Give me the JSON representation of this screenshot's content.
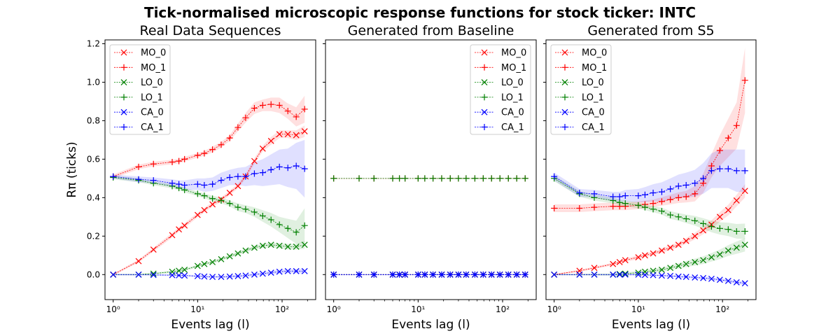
{
  "suptitle": "Tick-normalised microscopic response functions for stock ticker: INTC",
  "chart_data": [
    {
      "type": "line",
      "title": "Real Data Sequences",
      "xlabel": "Events lag (l)",
      "ylabel": "Rπ (ticks)",
      "xscale": "log",
      "xlim": [
        0.8,
        250
      ],
      "ylim": [
        -0.13,
        1.22
      ],
      "yticks": [
        0.0,
        0.2,
        0.4,
        0.6,
        0.8,
        1.0,
        1.2
      ],
      "ytick_labels": [
        "0.0",
        "0.2",
        "0.4",
        "0.6",
        "0.8",
        "1.0",
        "1.2"
      ],
      "xticks": [
        1,
        10,
        100
      ],
      "xtick_labels": [
        "10⁰",
        "10¹",
        "10²"
      ],
      "legend_position": "upper-left",
      "lags": [
        1,
        2,
        3,
        5,
        6,
        7,
        10,
        12,
        15,
        19,
        24,
        30,
        37,
        47,
        59,
        74,
        93,
        117,
        147,
        185
      ],
      "series": [
        {
          "name": "MO_0",
          "color": "#ff0000",
          "marker": "x",
          "values": [
            0.0,
            0.07,
            0.13,
            0.205,
            0.235,
            0.255,
            0.31,
            0.335,
            0.365,
            0.39,
            0.425,
            0.46,
            0.51,
            0.59,
            0.655,
            0.695,
            0.73,
            0.73,
            0.725,
            0.745
          ],
          "band": [
            0.005,
            0.008,
            0.01,
            0.012,
            0.012,
            0.012,
            0.012,
            0.012,
            0.012,
            0.012,
            0.012,
            0.012,
            0.012,
            0.015,
            0.015,
            0.02,
            0.02,
            0.02,
            0.025,
            0.03
          ]
        },
        {
          "name": "MO_1",
          "color": "#ff0000",
          "marker": "+",
          "values": [
            0.51,
            0.56,
            0.575,
            0.585,
            0.59,
            0.6,
            0.62,
            0.63,
            0.65,
            0.675,
            0.71,
            0.765,
            0.815,
            0.865,
            0.88,
            0.885,
            0.88,
            0.85,
            0.82,
            0.86
          ],
          "band": [
            0.01,
            0.012,
            0.012,
            0.012,
            0.012,
            0.012,
            0.012,
            0.012,
            0.015,
            0.015,
            0.015,
            0.02,
            0.025,
            0.03,
            0.03,
            0.035,
            0.04,
            0.04,
            0.05,
            0.07
          ]
        },
        {
          "name": "LO_0",
          "color": "#008000",
          "marker": "x",
          "values": [
            0.0,
            0.0,
            0.005,
            0.015,
            0.02,
            0.025,
            0.045,
            0.055,
            0.065,
            0.08,
            0.095,
            0.11,
            0.125,
            0.14,
            0.15,
            0.155,
            0.15,
            0.145,
            0.145,
            0.155
          ],
          "band": [
            0.003,
            0.004,
            0.005,
            0.006,
            0.006,
            0.006,
            0.007,
            0.007,
            0.008,
            0.008,
            0.009,
            0.01,
            0.01,
            0.01,
            0.012,
            0.012,
            0.013,
            0.015,
            0.015,
            0.02
          ]
        },
        {
          "name": "LO_1",
          "color": "#008000",
          "marker": "+",
          "values": [
            0.505,
            0.49,
            0.475,
            0.46,
            0.45,
            0.44,
            0.42,
            0.41,
            0.395,
            0.385,
            0.37,
            0.35,
            0.34,
            0.325,
            0.305,
            0.285,
            0.26,
            0.24,
            0.22,
            0.255
          ],
          "band": [
            0.01,
            0.01,
            0.01,
            0.012,
            0.012,
            0.012,
            0.012,
            0.012,
            0.015,
            0.015,
            0.015,
            0.02,
            0.02,
            0.025,
            0.03,
            0.035,
            0.04,
            0.05,
            0.06,
            0.09
          ]
        },
        {
          "name": "CA_0",
          "color": "#0000ff",
          "marker": "x",
          "values": [
            0.0,
            0.0,
            -0.002,
            -0.003,
            -0.004,
            -0.005,
            -0.008,
            -0.01,
            -0.012,
            -0.012,
            -0.01,
            -0.008,
            -0.005,
            0.0,
            0.005,
            0.01,
            0.015,
            0.018,
            0.018,
            0.018
          ],
          "band": [
            0.003,
            0.004,
            0.004,
            0.005,
            0.005,
            0.005,
            0.005,
            0.005,
            0.006,
            0.006,
            0.006,
            0.007,
            0.007,
            0.008,
            0.008,
            0.009,
            0.01,
            0.01,
            0.012,
            0.012
          ]
        },
        {
          "name": "CA_1",
          "color": "#0000ff",
          "marker": "+",
          "values": [
            0.51,
            0.495,
            0.49,
            0.475,
            0.47,
            0.465,
            0.47,
            0.465,
            0.47,
            0.49,
            0.505,
            0.51,
            0.51,
            0.525,
            0.53,
            0.545,
            0.56,
            0.555,
            0.565,
            0.55
          ],
          "band": [
            0.01,
            0.015,
            0.015,
            0.02,
            0.02,
            0.025,
            0.03,
            0.035,
            0.035,
            0.04,
            0.04,
            0.045,
            0.05,
            0.06,
            0.07,
            0.08,
            0.09,
            0.1,
            0.12,
            0.15
          ]
        }
      ]
    },
    {
      "type": "line",
      "title": "Generated from Baseline",
      "xlabel": "Events lag (l)",
      "xscale": "log",
      "xlim": [
        0.8,
        250
      ],
      "ylim": [
        -0.13,
        1.22
      ],
      "xticks": [
        1,
        10,
        100
      ],
      "xtick_labels": [
        "10⁰",
        "10¹",
        "10²"
      ],
      "legend_position": "upper-right",
      "lags": [
        1,
        2,
        3,
        5,
        6,
        7,
        10,
        12,
        15,
        19,
        24,
        30,
        37,
        47,
        59,
        74,
        93,
        117,
        147,
        185
      ],
      "series": [
        {
          "name": "MO_0",
          "color": "#ff0000",
          "marker": "x",
          "values": [
            0,
            0,
            0,
            0,
            0,
            0,
            0,
            0,
            0,
            0,
            0,
            0,
            0,
            0,
            0,
            0,
            0,
            0,
            0,
            0
          ]
        },
        {
          "name": "MO_1",
          "color": "#ff0000",
          "marker": "+",
          "values": [
            0.5,
            0.5,
            0.5,
            0.5,
            0.5,
            0.5,
            0.5,
            0.5,
            0.5,
            0.5,
            0.5,
            0.5,
            0.5,
            0.5,
            0.5,
            0.5,
            0.5,
            0.5,
            0.5,
            0.5
          ]
        },
        {
          "name": "LO_0",
          "color": "#008000",
          "marker": "x",
          "values": [
            0,
            0,
            0,
            0,
            0,
            0,
            0,
            0,
            0,
            0,
            0,
            0,
            0,
            0,
            0,
            0,
            0,
            0,
            0,
            0
          ]
        },
        {
          "name": "LO_1",
          "color": "#008000",
          "marker": "+",
          "values": [
            0.5,
            0.5,
            0.5,
            0.5,
            0.5,
            0.5,
            0.5,
            0.5,
            0.5,
            0.5,
            0.5,
            0.5,
            0.5,
            0.5,
            0.5,
            0.5,
            0.5,
            0.5,
            0.5,
            0.5
          ]
        },
        {
          "name": "CA_0",
          "color": "#0000ff",
          "marker": "x",
          "values": [
            0,
            0,
            0,
            0,
            0,
            0,
            0,
            0,
            0,
            0,
            0,
            0,
            0,
            0,
            0,
            0,
            0,
            0,
            0,
            0
          ]
        },
        {
          "name": "CA_1",
          "color": "#0000ff",
          "marker": "+",
          "values": [
            0,
            0,
            0,
            0,
            0,
            0,
            0,
            0,
            0,
            0,
            0,
            0,
            0,
            0,
            0,
            0,
            0,
            0,
            0,
            0
          ]
        }
      ]
    },
    {
      "type": "line",
      "title": "Generated from S5",
      "xlabel": "Events lag (l)",
      "xscale": "log",
      "xlim": [
        0.8,
        250
      ],
      "ylim": [
        -0.13,
        1.22
      ],
      "xticks": [
        1,
        10,
        100
      ],
      "xtick_labels": [
        "10⁰",
        "10¹",
        "10²"
      ],
      "legend_position": "upper-left",
      "lags": [
        1,
        2,
        3,
        5,
        6,
        7,
        10,
        12,
        15,
        19,
        24,
        30,
        37,
        47,
        59,
        74,
        93,
        117,
        147,
        185
      ],
      "series": [
        {
          "name": "MO_0",
          "color": "#ff0000",
          "marker": "x",
          "values": [
            0.0,
            0.02,
            0.035,
            0.055,
            0.065,
            0.075,
            0.09,
            0.1,
            0.11,
            0.125,
            0.14,
            0.155,
            0.175,
            0.2,
            0.23,
            0.26,
            0.3,
            0.335,
            0.385,
            0.435
          ],
          "band": [
            0.003,
            0.005,
            0.006,
            0.007,
            0.008,
            0.008,
            0.01,
            0.01,
            0.01,
            0.012,
            0.012,
            0.013,
            0.015,
            0.017,
            0.02,
            0.022,
            0.025,
            0.028,
            0.03,
            0.035
          ]
        },
        {
          "name": "MO_1",
          "color": "#ff0000",
          "marker": "+",
          "values": [
            0.345,
            0.345,
            0.35,
            0.355,
            0.355,
            0.355,
            0.36,
            0.365,
            0.37,
            0.38,
            0.39,
            0.4,
            0.405,
            0.42,
            0.475,
            0.565,
            0.645,
            0.71,
            0.775,
            1.01
          ],
          "band": [
            0.02,
            0.02,
            0.02,
            0.02,
            0.02,
            0.02,
            0.02,
            0.02,
            0.02,
            0.022,
            0.025,
            0.028,
            0.03,
            0.04,
            0.05,
            0.06,
            0.08,
            0.1,
            0.12,
            0.17
          ]
        },
        {
          "name": "LO_0",
          "color": "#008000",
          "marker": "x",
          "values": [
            0.0,
            0.0,
            0.0,
            0.0,
            0.003,
            0.005,
            0.01,
            0.015,
            0.02,
            0.025,
            0.035,
            0.045,
            0.055,
            0.065,
            0.075,
            0.09,
            0.105,
            0.125,
            0.14,
            0.155
          ],
          "band": [
            0.003,
            0.004,
            0.005,
            0.006,
            0.006,
            0.007,
            0.008,
            0.009,
            0.01,
            0.011,
            0.012,
            0.014,
            0.016,
            0.018,
            0.02,
            0.022,
            0.025,
            0.028,
            0.032,
            0.035
          ]
        },
        {
          "name": "LO_1",
          "color": "#008000",
          "marker": "+",
          "values": [
            0.5,
            0.42,
            0.4,
            0.385,
            0.375,
            0.37,
            0.36,
            0.35,
            0.34,
            0.33,
            0.31,
            0.3,
            0.29,
            0.28,
            0.265,
            0.25,
            0.24,
            0.235,
            0.225,
            0.225
          ],
          "band": [
            0.015,
            0.015,
            0.015,
            0.015,
            0.015,
            0.015,
            0.015,
            0.015,
            0.015,
            0.018,
            0.02,
            0.02,
            0.022,
            0.025,
            0.028,
            0.03,
            0.032,
            0.035,
            0.038,
            0.04
          ]
        },
        {
          "name": "CA_0",
          "color": "#0000ff",
          "marker": "x",
          "values": [
            0.0,
            0.0,
            0.0,
            0.0,
            0.0,
            0.0,
            0.0,
            -0.002,
            -0.003,
            -0.005,
            -0.007,
            -0.01,
            -0.012,
            -0.015,
            -0.018,
            -0.022,
            -0.027,
            -0.033,
            -0.04,
            -0.045
          ],
          "band": [
            0.003,
            0.003,
            0.003,
            0.004,
            0.004,
            0.004,
            0.004,
            0.004,
            0.005,
            0.005,
            0.005,
            0.006,
            0.006,
            0.006,
            0.007,
            0.007,
            0.008,
            0.008,
            0.009,
            0.01
          ]
        },
        {
          "name": "CA_1",
          "color": "#0000ff",
          "marker": "+",
          "values": [
            0.51,
            0.425,
            0.42,
            0.405,
            0.405,
            0.41,
            0.41,
            0.415,
            0.425,
            0.43,
            0.445,
            0.46,
            0.465,
            0.475,
            0.5,
            0.54,
            0.55,
            0.55,
            0.54,
            0.54
          ],
          "band": [
            0.02,
            0.02,
            0.02,
            0.025,
            0.025,
            0.03,
            0.035,
            0.04,
            0.045,
            0.05,
            0.055,
            0.06,
            0.065,
            0.07,
            0.08,
            0.09,
            0.1,
            0.1,
            0.11,
            0.11
          ]
        }
      ]
    }
  ]
}
